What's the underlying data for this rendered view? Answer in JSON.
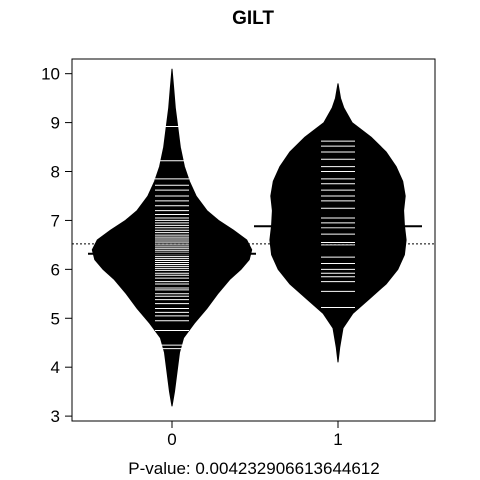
{
  "chart_data": {
    "type": "beanplot",
    "title": "GILT",
    "xlabel": "P-value: 0.004232906613644612",
    "ylabel": "",
    "ylim": [
      2.9,
      10.3
    ],
    "yticks": [
      3,
      4,
      5,
      6,
      7,
      8,
      9,
      10
    ],
    "categories": [
      "0",
      "1"
    ],
    "overall_mean": 6.52,
    "beans": [
      {
        "category": "0",
        "mean": 6.32,
        "density": [
          [
            3.2,
            0.0
          ],
          [
            3.5,
            0.03
          ],
          [
            3.9,
            0.06
          ],
          [
            4.3,
            0.09
          ],
          [
            4.6,
            0.14
          ],
          [
            4.9,
            0.27
          ],
          [
            5.2,
            0.42
          ],
          [
            5.5,
            0.55
          ],
          [
            5.8,
            0.7
          ],
          [
            6.0,
            0.83
          ],
          [
            6.2,
            0.93
          ],
          [
            6.4,
            0.96
          ],
          [
            6.6,
            0.9
          ],
          [
            6.8,
            0.74
          ],
          [
            7.0,
            0.56
          ],
          [
            7.2,
            0.42
          ],
          [
            7.5,
            0.29
          ],
          [
            7.8,
            0.21
          ],
          [
            8.1,
            0.15
          ],
          [
            8.5,
            0.1
          ],
          [
            8.9,
            0.07
          ],
          [
            9.3,
            0.04
          ],
          [
            9.7,
            0.02
          ],
          [
            10.1,
            0.0
          ]
        ],
        "points": [
          4.38,
          4.45,
          4.75,
          4.95,
          5.05,
          5.12,
          5.2,
          5.3,
          5.38,
          5.45,
          5.5,
          5.58,
          5.62,
          5.7,
          5.75,
          5.82,
          5.88,
          5.92,
          5.98,
          6.02,
          6.06,
          6.1,
          6.14,
          6.18,
          6.22,
          6.26,
          6.3,
          6.34,
          6.38,
          6.42,
          6.46,
          6.5,
          6.54,
          6.58,
          6.62,
          6.66,
          6.7,
          6.75,
          6.8,
          6.85,
          6.9,
          6.95,
          7.0,
          7.05,
          7.12,
          7.2,
          7.3,
          7.4,
          7.5,
          7.62,
          7.72,
          7.85,
          8.22,
          8.92
        ]
      },
      {
        "category": "1",
        "mean": 6.88,
        "density": [
          [
            4.1,
            0.0
          ],
          [
            4.4,
            0.02
          ],
          [
            4.8,
            0.06
          ],
          [
            5.1,
            0.18
          ],
          [
            5.4,
            0.38
          ],
          [
            5.7,
            0.58
          ],
          [
            6.0,
            0.72
          ],
          [
            6.3,
            0.8
          ],
          [
            6.6,
            0.82
          ],
          [
            6.9,
            0.8
          ],
          [
            7.2,
            0.79
          ],
          [
            7.5,
            0.81
          ],
          [
            7.8,
            0.78
          ],
          [
            8.1,
            0.7
          ],
          [
            8.4,
            0.58
          ],
          [
            8.7,
            0.4
          ],
          [
            9.0,
            0.17
          ],
          [
            9.3,
            0.07
          ],
          [
            9.5,
            0.03
          ],
          [
            9.8,
            0.0
          ]
        ],
        "points": [
          5.22,
          5.55,
          5.75,
          5.85,
          5.92,
          6.0,
          6.12,
          6.25,
          6.5,
          6.55,
          6.72,
          6.85,
          6.95,
          7.05,
          7.25,
          7.4,
          7.5,
          7.62,
          7.75,
          7.85,
          8.0,
          8.1,
          8.25,
          8.4,
          8.52,
          8.62
        ]
      }
    ],
    "grid": false,
    "colors": {
      "bean_fill": "#000000",
      "points": "#ffffff",
      "mean_line": "#000000",
      "background": "#ffffff"
    }
  }
}
